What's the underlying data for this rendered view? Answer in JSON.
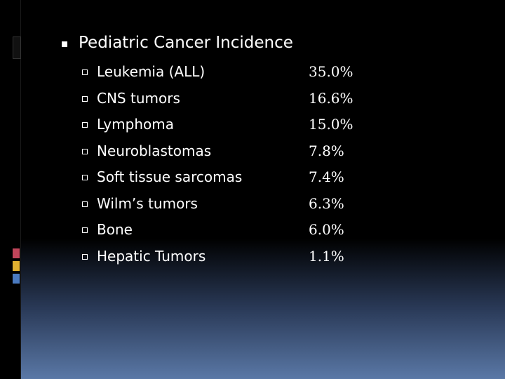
{
  "title": "Pediatric Cancer Incidence",
  "items": [
    {
      "label": "Leukemia  (ALL)",
      "value": "35.0%"
    },
    {
      "label": "CNS tumors",
      "value": "16.6%"
    },
    {
      "label": "Lymphoma",
      "value": "15.0%"
    },
    {
      "label": "Neuroblastomas",
      "value": "7.8%"
    },
    {
      "label": "Soft tissue sarcomas",
      "value": "7.4%"
    },
    {
      "label": "Wilm’s tumors",
      "value": "6.3%"
    },
    {
      "label": "Bone",
      "value": "6.0%"
    },
    {
      "label": "Hepatic Tumors",
      "value": "1.1%"
    }
  ]
}
